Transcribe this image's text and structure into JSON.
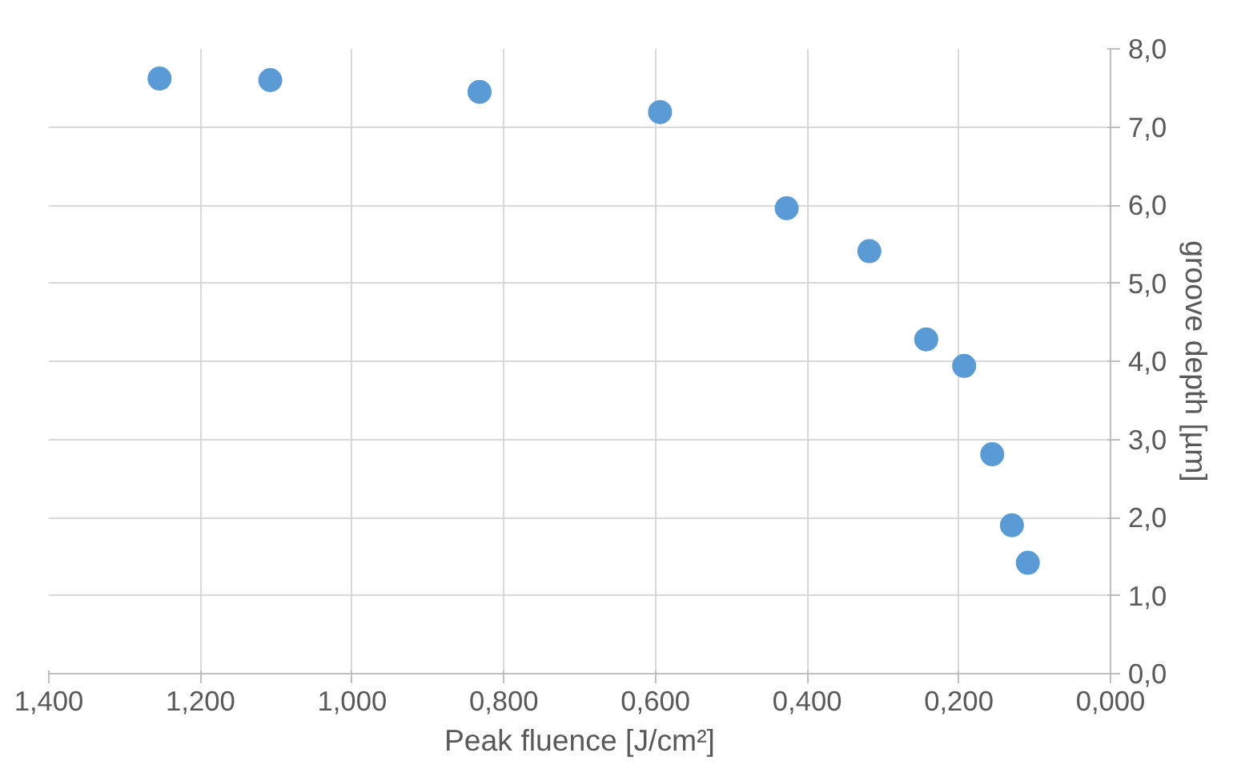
{
  "chart_data": {
    "type": "scatter",
    "xlabel": "Peak fluence [J/cm²]",
    "ylabel": "groove depth [µm]",
    "x": [
      1.254,
      1.108,
      0.832,
      0.594,
      0.427,
      0.318,
      0.243,
      0.193,
      0.156,
      0.13,
      0.109
    ],
    "series": [
      {
        "color": "#5b9bd5",
        "values": [
          7.62,
          7.6,
          7.45,
          7.19,
          5.96,
          5.41,
          4.28,
          3.94,
          2.81,
          1.9,
          1.42
        ]
      }
    ],
    "xlim": [
      1.4,
      0
    ],
    "ylim": [
      0,
      8
    ],
    "xticks": [
      {
        "value": 1.4,
        "label": "1,400"
      },
      {
        "value": 1.2,
        "label": "1,200"
      },
      {
        "value": 1.0,
        "label": "1,000"
      },
      {
        "value": 0.8,
        "label": "0,800"
      },
      {
        "value": 0.6,
        "label": "0,600"
      },
      {
        "value": 0.4,
        "label": "0,400"
      },
      {
        "value": 0.2,
        "label": "0,200"
      },
      {
        "value": 0,
        "label": "0,000"
      }
    ],
    "yticks": [
      {
        "value": 0,
        "label": "0,0"
      },
      {
        "value": 1,
        "label": "1,0"
      },
      {
        "value": 2,
        "label": "2,0"
      },
      {
        "value": 3,
        "label": "3,0"
      },
      {
        "value": 4,
        "label": "4,0"
      },
      {
        "value": 5,
        "label": "5,0"
      },
      {
        "value": 6,
        "label": "6,0"
      },
      {
        "value": 7,
        "label": "7,0"
      },
      {
        "value": 8,
        "label": "8,0"
      }
    ],
    "grid": true,
    "marker": "circle"
  }
}
